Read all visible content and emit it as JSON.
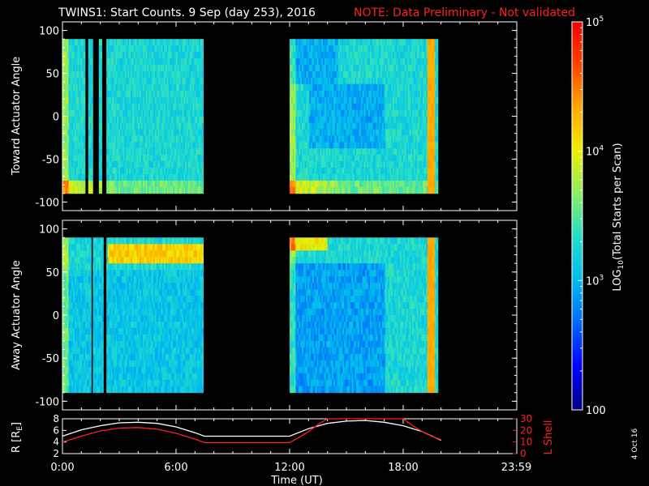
{
  "title": {
    "main": "TWINS1: Start Counts.  9 Sep (day 253), 2016",
    "note": "NOTE: Data Preliminary - Not validated",
    "note_color": "#ff2020"
  },
  "stamp": "4 Oct 16",
  "chart_data": [
    {
      "type": "heatmap",
      "ylabel": "Toward Actuator Angle",
      "ylim": [
        -110,
        110
      ],
      "yticks": [
        "100",
        "50",
        "0",
        "-50",
        "-100"
      ],
      "data_y_range": [
        -90,
        90
      ],
      "x_unit": "hours UT",
      "xlim": [
        0,
        24
      ],
      "data_segments": [
        [
          0.0,
          7.4
        ],
        [
          12.0,
          19.8
        ]
      ],
      "data_gaps": [
        [
          1.2,
          1.35
        ],
        [
          1.6,
          1.9
        ],
        [
          2.05,
          2.3
        ]
      ],
      "description_levels": "background mostly cyan ~10^3 counts; orange/red near -90 deg at segment starts; orange band at ~19.3-19.6 h"
    },
    {
      "type": "heatmap",
      "ylabel": "Away Actuator Angle",
      "ylim": [
        -110,
        110
      ],
      "yticks": [
        "100",
        "50",
        "0",
        "-50",
        "-100"
      ],
      "data_y_range": [
        -90,
        90
      ],
      "x_unit": "hours UT",
      "xlim": [
        0,
        24
      ],
      "data_segments": [
        [
          0.0,
          7.4
        ],
        [
          12.0,
          19.8
        ]
      ],
      "data_gaps": [
        [
          1.45,
          1.6
        ],
        [
          2.1,
          2.3
        ]
      ],
      "description_levels": "orange band near +75 deg from 2.5-7.4 h; blue/cyan lower angles; orange band at ~19.0-19.6 h"
    },
    {
      "type": "line",
      "ylabel_left": "R [R",
      "ylabel_left_sub": "E",
      "ylabel_left_close": "]",
      "ylabel_right": "L Shell",
      "ylim_left": [
        2,
        8
      ],
      "yticks_left": [
        "8",
        "6",
        "4",
        "2"
      ],
      "ylim_right": [
        0,
        30
      ],
      "yticks_right": [
        "30",
        "20",
        "10",
        "0"
      ],
      "xlabel": "Time (UT)",
      "xticks": [
        "0:00",
        "6:00",
        "12:00",
        "18:00",
        "23:59"
      ],
      "xtick_hours": [
        0,
        6,
        12,
        18,
        23.98
      ],
      "series": [
        {
          "color": "#ffffff",
          "x": [
            0,
            1,
            2,
            3,
            4,
            5,
            6,
            7,
            7.5,
            12,
            13,
            14,
            15,
            16,
            17,
            18,
            19,
            20
          ],
          "y": [
            5.0,
            6.1,
            6.8,
            7.3,
            7.4,
            7.2,
            6.6,
            5.6,
            5.0,
            5.0,
            6.3,
            7.2,
            7.6,
            7.7,
            7.4,
            6.8,
            5.8,
            4.3
          ]
        },
        {
          "color": "#ff2020",
          "x": [
            0,
            1,
            2,
            3,
            4,
            5,
            6,
            7,
            7.5,
            12,
            12.5,
            13,
            13.5,
            14.0,
            18.0,
            18.5,
            19,
            19.5,
            20
          ],
          "y": [
            10,
            15,
            19.5,
            22,
            22.5,
            21,
            17.5,
            12.5,
            9.5,
            9.5,
            14,
            19,
            25,
            31,
            31,
            24,
            19,
            15,
            12
          ]
        }
      ]
    }
  ],
  "colorbar": {
    "label_main": "LOG",
    "label_sub": "10",
    "label_rest": "(Total Starts per Scan)",
    "scale": "log",
    "range": [
      100,
      100000
    ],
    "tick_labels": [
      {
        "base": "10",
        "exp": "5",
        "value": 100000
      },
      {
        "base": "10",
        "exp": "4",
        "value": 10000
      },
      {
        "base": "10",
        "exp": "3",
        "value": 1000
      },
      {
        "base": "100",
        "exp": "",
        "value": 100
      }
    ],
    "colors": [
      "#000080",
      "#0000ff",
      "#0066ff",
      "#00bbee",
      "#22ddcc",
      "#88ee66",
      "#eeee00",
      "#ffaa00",
      "#ff4400",
      "#ee0000"
    ]
  }
}
